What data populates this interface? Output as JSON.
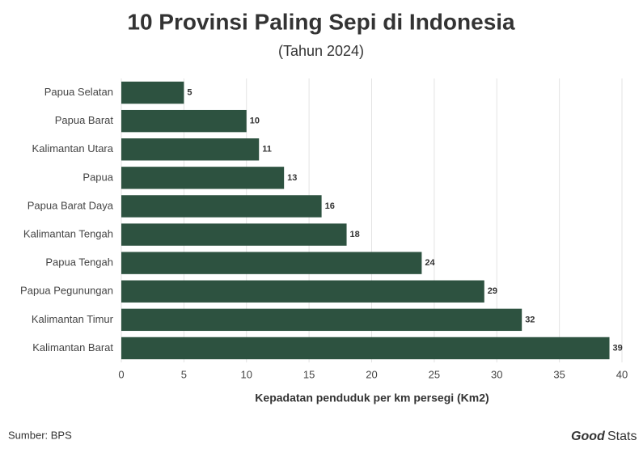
{
  "chart_data": {
    "type": "hbar",
    "title": "10 Provinsi Paling Sepi di Indonesia",
    "subtitle": "(Tahun 2024)",
    "categories": [
      "Papua Selatan",
      "Papua Barat",
      "Kalimantan Utara",
      "Papua",
      "Papua Barat Daya",
      "Kalimantan Tengah",
      "Papua Tengah",
      "Papua Pegunungan",
      "Kalimantan Timur",
      "Kalimantan Barat"
    ],
    "values": [
      5,
      10,
      11,
      13,
      16,
      18,
      24,
      29,
      32,
      39
    ],
    "color": "#2d5240",
    "xlabel": "Kepadatan penduduk per km persegi (Km2)",
    "xlim": [
      0,
      40
    ],
    "xticks": [
      0,
      5,
      10,
      15,
      20,
      25,
      30,
      35,
      40
    ],
    "grid": true,
    "source": "Sumber: BPS",
    "logo": [
      "Good",
      "Stats"
    ]
  }
}
